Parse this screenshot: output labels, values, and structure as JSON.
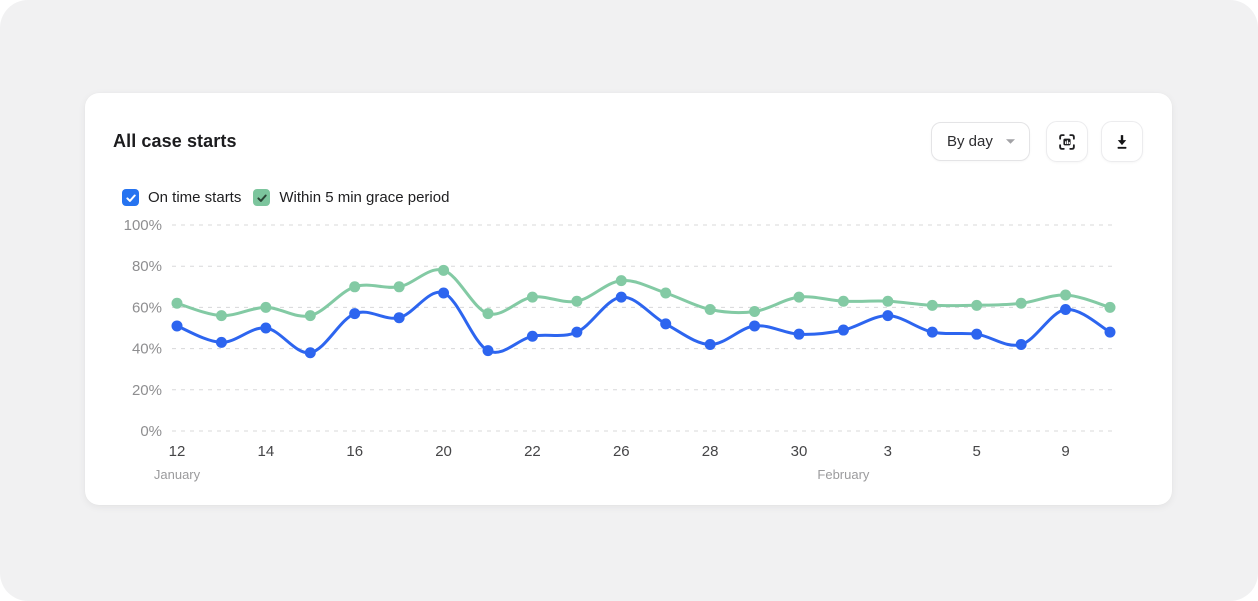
{
  "card": {
    "title": "All case starts",
    "dropdown": {
      "value": "By day"
    },
    "legend": {
      "items": [
        {
          "label": "On time starts",
          "checked": true,
          "box_color": "#2673f0",
          "check_color": "#ffffff"
        },
        {
          "label": "Within 5 min grace period",
          "checked": true,
          "box_color": "#7cc59d",
          "check_color": "#2b4637"
        }
      ]
    }
  },
  "chart_data": {
    "type": "line",
    "title": "All case starts",
    "ylim": [
      0,
      100
    ],
    "y_tick_labels": [
      "100%",
      "80%",
      "60%",
      "40%",
      "20%",
      "0%"
    ],
    "grid": "dashed-horizontal",
    "legend_position": "top-left",
    "x_labels": [
      "12",
      "",
      "14",
      "",
      "16",
      "",
      "20",
      "",
      "22",
      "",
      "26",
      "",
      "28",
      "",
      "30",
      "",
      "3",
      "",
      "5",
      "",
      "9",
      ""
    ],
    "month_annotations": [
      {
        "label": "January",
        "index": 0
      },
      {
        "label": "February",
        "index": 15
      }
    ],
    "series": [
      {
        "name": "On time starts",
        "color": "#2d65ef",
        "values": [
          51,
          43,
          50,
          38,
          57,
          55,
          67,
          39,
          46,
          48,
          65,
          52,
          42,
          51,
          47,
          49,
          56,
          48,
          47,
          42,
          59,
          48
        ]
      },
      {
        "name": "Within 5 min grace period",
        "color": "#83caa4",
        "values": [
          62,
          56,
          60,
          56,
          70,
          70,
          78,
          57,
          65,
          63,
          73,
          67,
          59,
          58,
          65,
          63,
          63,
          61,
          61,
          62,
          66,
          60
        ]
      }
    ]
  }
}
